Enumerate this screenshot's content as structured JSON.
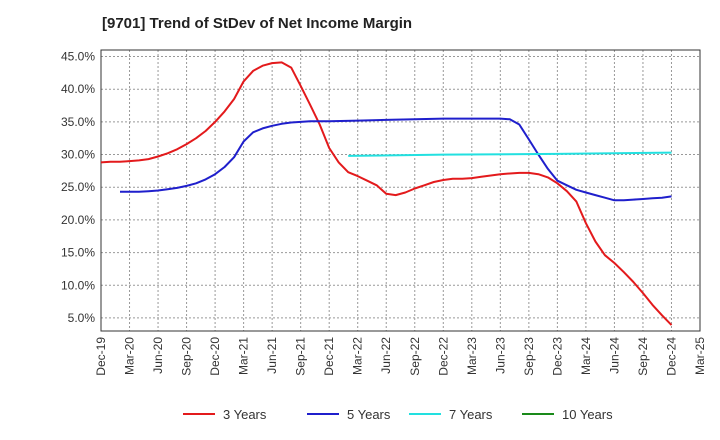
{
  "chart_data": {
    "type": "line",
    "title": "[9701]  Trend of StDev of Net Income Margin",
    "xlabel": "",
    "ylabel": "",
    "x_ticks": [
      "Dec-19",
      "Mar-20",
      "Jun-20",
      "Sep-20",
      "Dec-20",
      "Mar-21",
      "Jun-21",
      "Sep-21",
      "Dec-21",
      "Mar-22",
      "Jun-22",
      "Sep-22",
      "Dec-22",
      "Mar-23",
      "Jun-23",
      "Sep-23",
      "Dec-23",
      "Mar-24",
      "Jun-24",
      "Sep-24",
      "Dec-24",
      "Mar-25"
    ],
    "y_ticks": [
      "5.0%",
      "10.0%",
      "15.0%",
      "20.0%",
      "25.0%",
      "30.0%",
      "35.0%",
      "40.0%",
      "45.0%"
    ],
    "ylim": [
      3.0,
      46.0
    ],
    "grid": true,
    "legend_position": "bottom",
    "series": [
      {
        "name": "3 Years",
        "color": "#e31a1c",
        "points": [
          [
            "Dec-19",
            28.8
          ],
          [
            "Jan-20",
            28.9
          ],
          [
            "Feb-20",
            28.9
          ],
          [
            "Mar-20",
            29.0
          ],
          [
            "Apr-20",
            29.1
          ],
          [
            "May-20",
            29.3
          ],
          [
            "Jun-20",
            29.7
          ],
          [
            "Jul-20",
            30.2
          ],
          [
            "Aug-20",
            30.8
          ],
          [
            "Sep-20",
            31.6
          ],
          [
            "Oct-20",
            32.5
          ],
          [
            "Nov-20",
            33.6
          ],
          [
            "Dec-20",
            35.0
          ],
          [
            "Jan-21",
            36.6
          ],
          [
            "Feb-21",
            38.5
          ],
          [
            "Mar-21",
            41.2
          ],
          [
            "Apr-21",
            42.8
          ],
          [
            "May-21",
            43.6
          ],
          [
            "Jun-21",
            44.0
          ],
          [
            "Jul-21",
            44.1
          ],
          [
            "Aug-21",
            43.3
          ],
          [
            "Sep-21",
            40.5
          ],
          [
            "Oct-21",
            37.6
          ],
          [
            "Nov-21",
            34.6
          ],
          [
            "Dec-21",
            31.0
          ],
          [
            "Jan-22",
            28.8
          ],
          [
            "Feb-22",
            27.3
          ],
          [
            "Mar-22",
            26.7
          ],
          [
            "Apr-22",
            26.0
          ],
          [
            "May-22",
            25.3
          ],
          [
            "Jun-22",
            24.0
          ],
          [
            "Jul-22",
            23.8
          ],
          [
            "Aug-22",
            24.2
          ],
          [
            "Sep-22",
            24.8
          ],
          [
            "Oct-22",
            25.3
          ],
          [
            "Nov-22",
            25.8
          ],
          [
            "Dec-22",
            26.1
          ],
          [
            "Jan-23",
            26.3
          ],
          [
            "Feb-23",
            26.3
          ],
          [
            "Mar-23",
            26.4
          ],
          [
            "Apr-23",
            26.6
          ],
          [
            "May-23",
            26.8
          ],
          [
            "Jun-23",
            27.0
          ],
          [
            "Jul-23",
            27.1
          ],
          [
            "Aug-23",
            27.2
          ],
          [
            "Sep-23",
            27.2
          ],
          [
            "Oct-23",
            27.0
          ],
          [
            "Nov-23",
            26.5
          ],
          [
            "Dec-23",
            25.6
          ],
          [
            "Jan-24",
            24.4
          ],
          [
            "Feb-24",
            22.8
          ],
          [
            "Mar-24",
            19.5
          ],
          [
            "Apr-24",
            16.7
          ],
          [
            "May-24",
            14.6
          ],
          [
            "Jun-24",
            13.4
          ],
          [
            "Jul-24",
            12.0
          ],
          [
            "Aug-24",
            10.5
          ],
          [
            "Sep-24",
            8.8
          ],
          [
            "Oct-24",
            7.0
          ],
          [
            "Nov-24",
            5.4
          ],
          [
            "Dec-24",
            3.9
          ]
        ]
      },
      {
        "name": "5 Years",
        "color": "#1f1fcc",
        "points": [
          [
            "Feb-20",
            24.3
          ],
          [
            "Mar-20",
            24.3
          ],
          [
            "Apr-20",
            24.3
          ],
          [
            "May-20",
            24.4
          ],
          [
            "Jun-20",
            24.5
          ],
          [
            "Jul-20",
            24.7
          ],
          [
            "Aug-20",
            24.9
          ],
          [
            "Sep-20",
            25.2
          ],
          [
            "Oct-20",
            25.6
          ],
          [
            "Nov-20",
            26.2
          ],
          [
            "Dec-20",
            27.0
          ],
          [
            "Jan-21",
            28.1
          ],
          [
            "Feb-21",
            29.6
          ],
          [
            "Mar-21",
            32.0
          ],
          [
            "Apr-21",
            33.4
          ],
          [
            "May-21",
            34.0
          ],
          [
            "Jun-21",
            34.4
          ],
          [
            "Jul-21",
            34.7
          ],
          [
            "Aug-21",
            34.9
          ],
          [
            "Sep-21",
            35.0
          ],
          [
            "Oct-21",
            35.1
          ],
          [
            "Nov-21",
            35.1
          ],
          [
            "Dec-21",
            35.1
          ],
          [
            "Mar-22",
            35.2
          ],
          [
            "Jun-22",
            35.3
          ],
          [
            "Sep-22",
            35.4
          ],
          [
            "Dec-22",
            35.5
          ],
          [
            "Mar-23",
            35.5
          ],
          [
            "Jun-23",
            35.5
          ],
          [
            "Jul-23",
            35.4
          ],
          [
            "Aug-23",
            34.6
          ],
          [
            "Sep-23",
            32.3
          ],
          [
            "Oct-23",
            30.0
          ],
          [
            "Nov-23",
            27.8
          ],
          [
            "Dec-23",
            26.0
          ],
          [
            "Jan-24",
            25.3
          ],
          [
            "Feb-24",
            24.6
          ],
          [
            "Mar-24",
            24.2
          ],
          [
            "Apr-24",
            23.8
          ],
          [
            "May-24",
            23.4
          ],
          [
            "Jun-24",
            23.0
          ],
          [
            "Jul-24",
            23.0
          ],
          [
            "Aug-24",
            23.1
          ],
          [
            "Sep-24",
            23.2
          ],
          [
            "Oct-24",
            23.3
          ],
          [
            "Nov-24",
            23.4
          ],
          [
            "Dec-24",
            23.6
          ]
        ]
      },
      {
        "name": "7 Years",
        "color": "#22e0e0",
        "points": [
          [
            "Feb-22",
            29.8
          ],
          [
            "Dec-22",
            30.0
          ],
          [
            "Dec-23",
            30.1
          ],
          [
            "Dec-24",
            30.3
          ]
        ]
      },
      {
        "name": "10 Years",
        "color": "#1a8a1a",
        "points": []
      }
    ]
  }
}
